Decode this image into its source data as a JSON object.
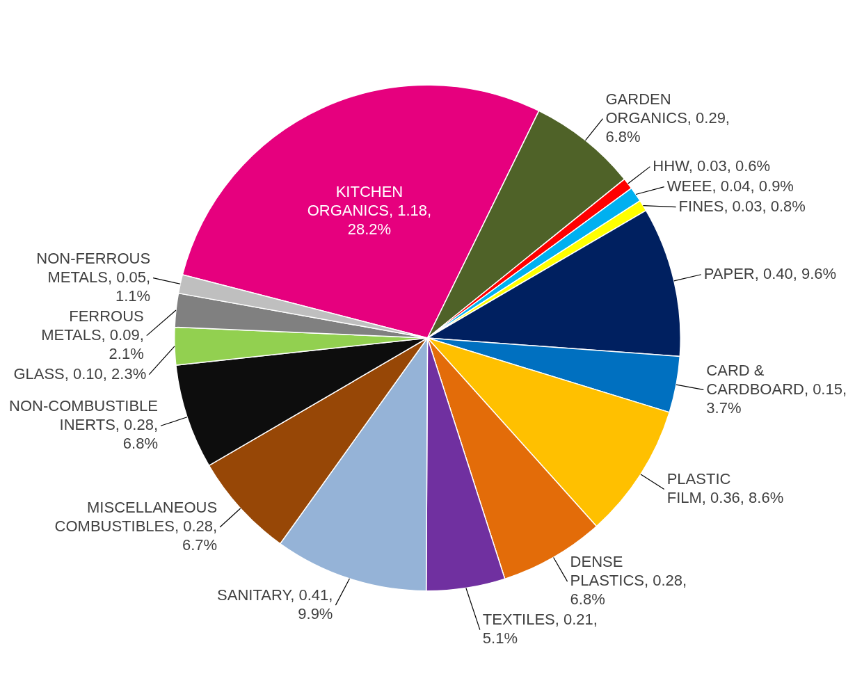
{
  "chart_data": {
    "type": "pie",
    "categories": [
      "KITCHEN ORGANICS",
      "GARDEN ORGANICS",
      "HHW",
      "WEEE",
      "FINES",
      "PAPER",
      "CARD & CARDBOARD",
      "PLASTIC FILM",
      "DENSE PLASTICS",
      "TEXTILES",
      "SANITARY",
      "MISCELLANEOUS COMBUSTIBLES",
      "NON-COMBUSTIBLE INERTS",
      "GLASS",
      "FERROUS METALS",
      "NON-FERROUS METALS"
    ],
    "values": [
      1.18,
      0.29,
      0.03,
      0.04,
      0.03,
      0.4,
      0.15,
      0.36,
      0.28,
      0.21,
      0.41,
      0.28,
      0.28,
      0.1,
      0.09,
      0.05
    ],
    "value_labels": [
      "1.18, 28.2%",
      "0.29, 6.8%",
      "0.03, 0.6%",
      "0.04, 0.9%",
      "0.03, 0.8%",
      "0.40, 9.6%",
      "0.15, 3.7%",
      "0.36, 8.6%",
      "0.28, 6.8%",
      "0.21, 5.1%",
      "0.41, 9.9%",
      "0.28, 6.7%",
      "0.28, 6.8%",
      "0.10, 2.3%",
      "0.09, 2.1%",
      "0.05, 1.1%"
    ],
    "colors": [
      "#e6007e",
      "#4f6228",
      "#ff0000",
      "#00b0f0",
      "#ffff00",
      "#002060",
      "#0070c0",
      "#ffc000",
      "#e36c09",
      "#7030a0",
      "#95b3d7",
      "#974706",
      "#0d0d0d",
      "#92d050",
      "#808080",
      "#bfbfbf"
    ]
  }
}
